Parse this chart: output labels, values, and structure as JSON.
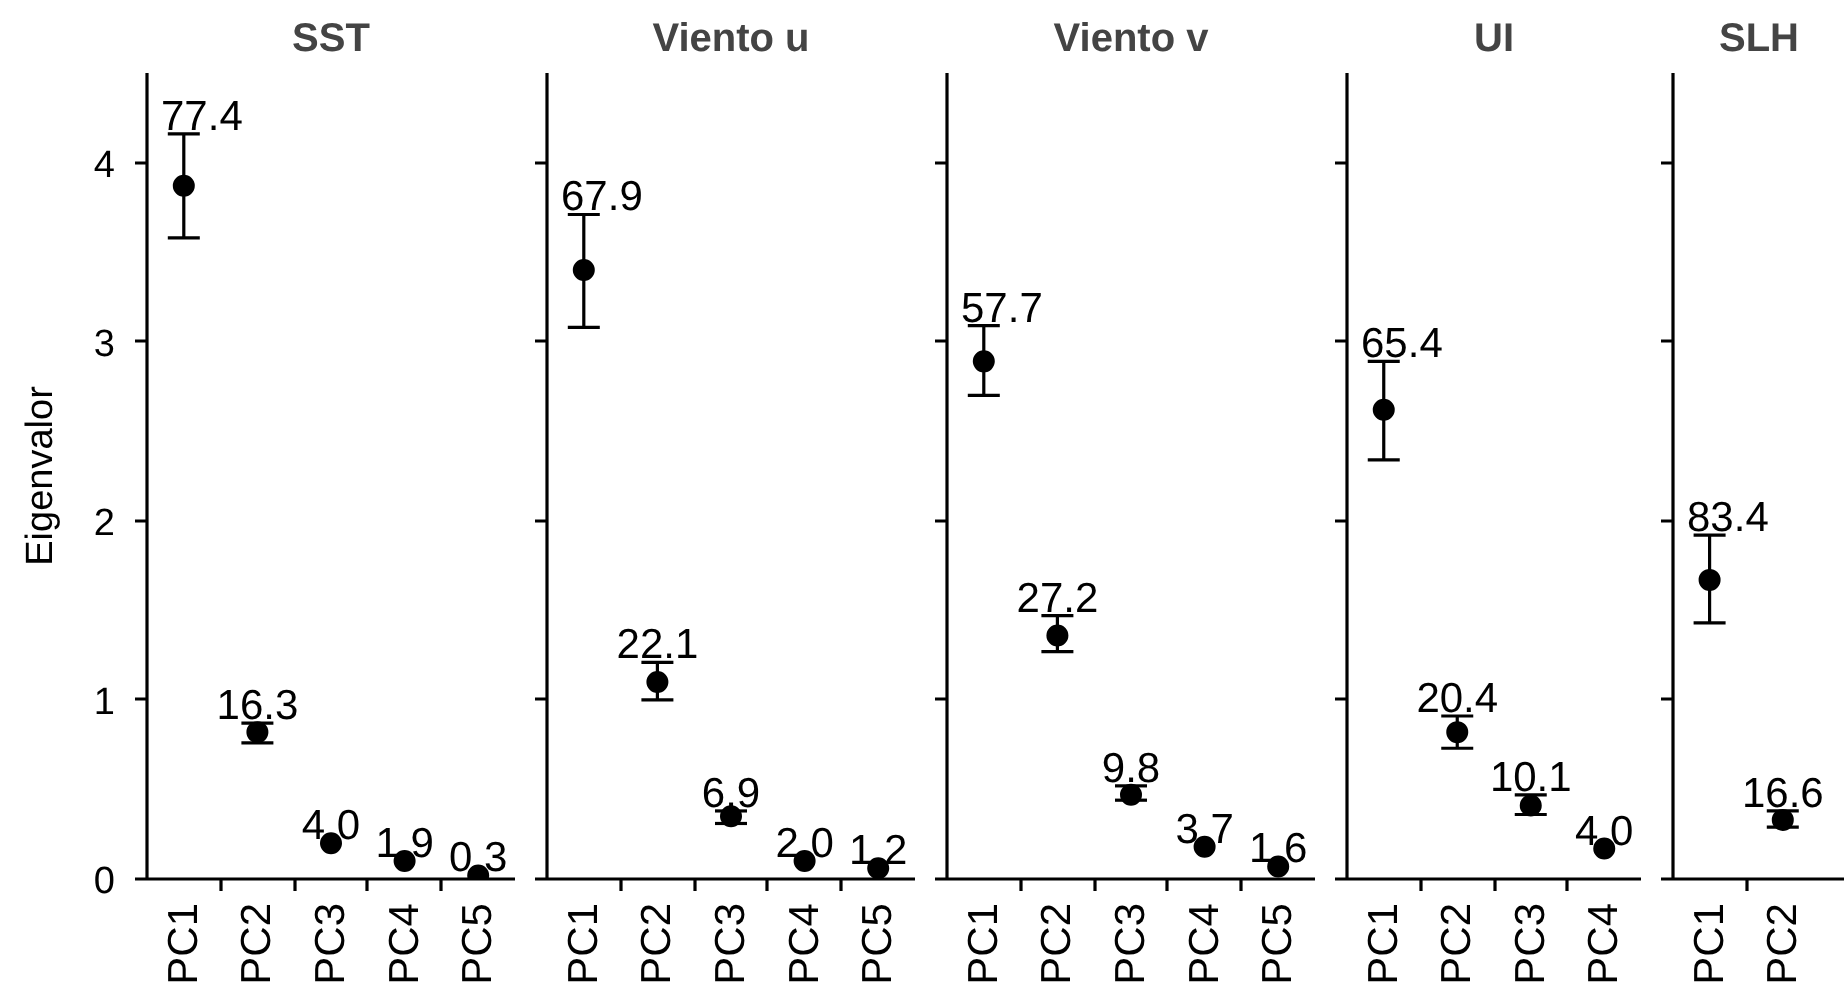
{
  "chart_data": [
    {
      "type": "scatter",
      "title": "SST",
      "ylabel": "Eigenvalor",
      "categories": [
        "PC1",
        "PC2",
        "PC3",
        "PC4",
        "PC5"
      ],
      "values": [
        3.87,
        0.82,
        0.2,
        0.1,
        0.02
      ],
      "errors": [
        [
          3.58,
          4.16
        ],
        [
          0.76,
          0.87
        ],
        null,
        null,
        null
      ],
      "annotations": [
        {
          "text": "77.4",
          "x": "PC1",
          "y": 3.87
        },
        {
          "text": "16.3",
          "x": "PC2",
          "y": 0.82
        },
        {
          "text": "4.0",
          "x": "PC3",
          "y": 0.2
        },
        {
          "text": "1.9",
          "x": "PC4",
          "y": 0.1
        },
        {
          "text": "0.3",
          "x": "PC5",
          "y": 0.02
        }
      ],
      "color": "#000000",
      "marker": "circle",
      "ylim": [
        0,
        4.5
      ],
      "yticks": [
        0,
        1,
        2,
        3,
        4
      ]
    },
    {
      "type": "scatter",
      "title": "Viento u",
      "categories": [
        "PC1",
        "PC2",
        "PC3",
        "PC4",
        "PC5"
      ],
      "values": [
        3.4,
        1.1,
        0.35,
        0.1,
        0.06
      ],
      "errors": [
        [
          3.08,
          3.71
        ],
        [
          1.0,
          1.21
        ],
        [
          0.31,
          0.38
        ],
        null,
        null
      ],
      "annotations": [
        {
          "text": "67.9",
          "x": "PC1",
          "y": 3.4
        },
        {
          "text": "22.1",
          "x": "PC2",
          "y": 1.1
        },
        {
          "text": "6.9",
          "x": "PC3",
          "y": 0.35
        },
        {
          "text": "2.0",
          "x": "PC4",
          "y": 0.1
        },
        {
          "text": "1.2",
          "x": "PC5",
          "y": 0.06
        }
      ],
      "color": "#000000",
      "marker": "circle",
      "ylim": [
        0,
        4.5
      ],
      "yticks": [
        0,
        1,
        2,
        3,
        4
      ],
      "tick_labels": "x"
    },
    {
      "type": "scatter",
      "title": "Viento v",
      "categories": [
        "PC1",
        "PC2",
        "PC3",
        "PC4",
        "PC5"
      ],
      "values": [
        2.89,
        1.36,
        0.47,
        0.18,
        0.07
      ],
      "errors": [
        [
          2.7,
          3.09
        ],
        [
          1.27,
          1.47
        ],
        [
          0.44,
          0.52
        ],
        null,
        null
      ],
      "annotations": [
        {
          "text": "57.7",
          "x": "PC1",
          "y": 2.89
        },
        {
          "text": "27.2",
          "x": "PC2",
          "y": 1.36
        },
        {
          "text": "9.8",
          "x": "PC3",
          "y": 0.47
        },
        {
          "text": "3.7",
          "x": "PC4",
          "y": 0.18
        },
        {
          "text": "1.6",
          "x": "PC5",
          "y": 0.07
        }
      ],
      "color": "#000000",
      "marker": "circle",
      "ylim": [
        0,
        4.5
      ],
      "yticks": [
        0,
        1,
        2,
        3,
        4
      ],
      "tick_labels": "x"
    },
    {
      "type": "scatter",
      "title": "UI",
      "categories": [
        "PC1",
        "PC2",
        "PC3",
        "PC4"
      ],
      "values": [
        2.62,
        0.82,
        0.41,
        0.17
      ],
      "errors": [
        [
          2.34,
          2.89
        ],
        [
          0.73,
          0.91
        ],
        [
          0.36,
          0.47
        ],
        null
      ],
      "annotations": [
        {
          "text": "65.4",
          "x": "PC1",
          "y": 2.62
        },
        {
          "text": "20.4",
          "x": "PC2",
          "y": 0.82
        },
        {
          "text": "10.1",
          "x": "PC3",
          "y": 0.41
        },
        {
          "text": "4.0",
          "x": "PC4",
          "y": 0.17
        }
      ],
      "color": "#000000",
      "marker": "circle",
      "ylim": [
        0,
        4.5
      ],
      "yticks": [
        0,
        1,
        2,
        3,
        4
      ],
      "tick_labels": "x"
    },
    {
      "type": "scatter",
      "title": "SLH",
      "categories": [
        "PC1",
        "PC2"
      ],
      "values": [
        1.67,
        0.33
      ],
      "errors": [
        [
          1.43,
          1.92
        ],
        [
          0.29,
          0.38
        ]
      ],
      "annotations": [
        {
          "text": "83.4",
          "x": "PC1",
          "y": 1.67
        },
        {
          "text": "16.6",
          "x": "PC2",
          "y": 0.33
        }
      ],
      "color": "#000000",
      "marker": "circle",
      "ylim": [
        0,
        4.5
      ],
      "yticks": [
        0,
        1,
        2,
        3,
        4
      ],
      "tick_labels": "x"
    }
  ]
}
